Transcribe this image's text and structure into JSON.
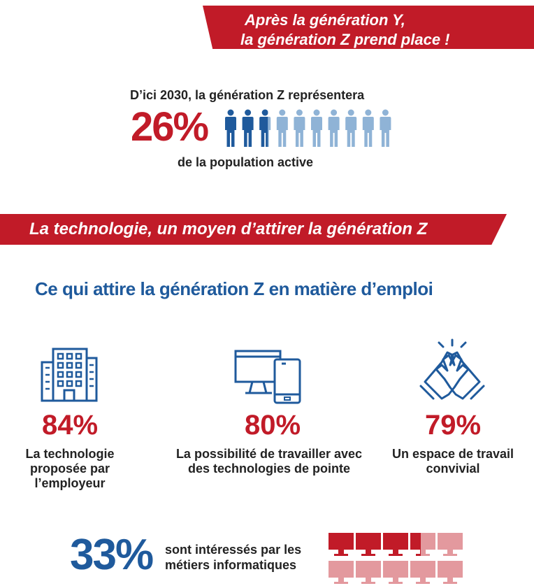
{
  "header_banner": {
    "line1": "Après la génération Y,",
    "line2": "la génération Z prend place !"
  },
  "population_stat": {
    "intro": "D’ici 2030, la génération Z représentera",
    "value": "26%",
    "outro": "de la population active",
    "people_icons": {
      "total": 10,
      "highlighted": 2.6,
      "icon": "person-icon"
    }
  },
  "tech_banner": {
    "text": "La technologie, un moyen d’attirer la génération Z"
  },
  "attract_section": {
    "heading": "Ce qui attire la génération Z en matière d’emploi",
    "items": [
      {
        "icon": "building-icon",
        "value": "84%",
        "label": "La technologie proposée par l’employeur"
      },
      {
        "icon": "devices-icon",
        "value": "80%",
        "label": "La possibilité de travailler avec des technologies de pointe"
      },
      {
        "icon": "handshake-icon",
        "value": "79%",
        "label": "Un espace de travail convivial"
      }
    ]
  },
  "it_jobs": {
    "value": "33%",
    "line1": "sont intéressés par les",
    "line2": "métiers informatiques",
    "monitor_icons": {
      "total": 10,
      "highlighted": 3.3,
      "icon": "monitor-icon"
    }
  },
  "colors": {
    "accent_red": "#c11b28",
    "dark_blue": "#1f5a9c",
    "light_blue": "#8fb3d6",
    "light_red": "#e3999e"
  }
}
